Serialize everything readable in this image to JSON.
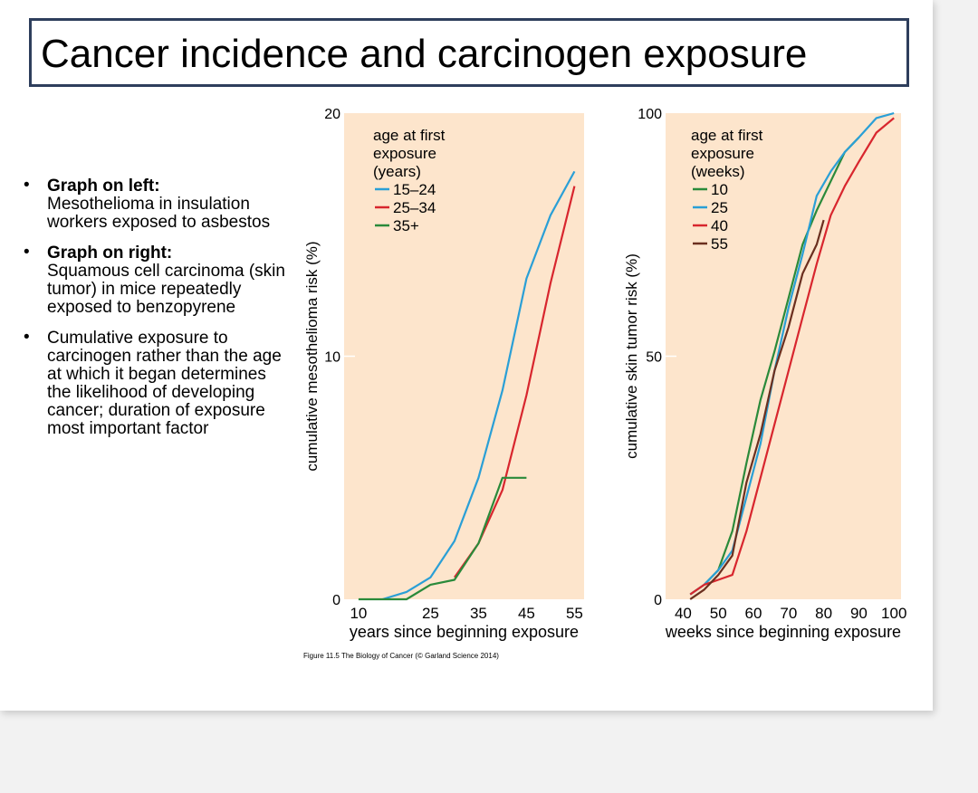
{
  "slide": {
    "title": "Cancer incidence and carcinogen exposure",
    "bullets": [
      {
        "bold": "Graph on left:",
        "text": "Mesothelioma in insulation workers exposed to asbestos"
      },
      {
        "bold": "Graph on right:",
        "text": "Squamous cell carcinoma (skin tumor) in mice repeatedly exposed to benzopyrene"
      },
      {
        "bold": "",
        "text": "Cumulative exposure to carcinogen rather than the age at which it began determines the likelihood of developing cancer; duration of exposure most important factor"
      }
    ],
    "caption": "Figure 11.5 The Biology of Cancer (© Garland Science 2014)"
  },
  "colors": {
    "plot_bg": "#fde5cc",
    "blue": "#2a9fd6",
    "red": "#d8262e",
    "green": "#2a8a3a",
    "brown": "#6b2f1f",
    "title_border": "#2e3e5c"
  },
  "chart_data": [
    {
      "type": "line",
      "xlabel": "years since beginning exposure",
      "ylabel": "cumulative mesothelioma risk (%)",
      "xlim": [
        7,
        57
      ],
      "ylim": [
        0,
        20
      ],
      "xticks": [
        10,
        25,
        35,
        45,
        55
      ],
      "yticks": [
        0,
        10,
        20
      ],
      "grid": false,
      "legend": {
        "title": [
          "age at first",
          "exposure",
          "(years)"
        ],
        "position": "top-left"
      },
      "series": [
        {
          "name": "15–24",
          "color": "#2a9fd6",
          "x": [
            15,
            20,
            25,
            30,
            35,
            40,
            45,
            50,
            55
          ],
          "y": [
            0,
            0.3,
            0.9,
            2.4,
            5.0,
            8.6,
            13.2,
            15.8,
            17.6
          ]
        },
        {
          "name": "25–34",
          "color": "#d8262e",
          "x": [
            30,
            35,
            40,
            45,
            50,
            55
          ],
          "y": [
            0.9,
            2.3,
            4.5,
            8.4,
            13.0,
            17.0
          ]
        },
        {
          "name": "35+",
          "color": "#2a8a3a",
          "x": [
            10,
            15,
            20,
            25,
            30,
            35,
            40,
            45
          ],
          "y": [
            0,
            0,
            0,
            0.6,
            0.8,
            2.3,
            5.0,
            5.0
          ]
        }
      ]
    },
    {
      "type": "line",
      "xlabel": "weeks since beginning exposure",
      "ylabel": "cumulative skin tumor risk (%)",
      "xlim": [
        35,
        102
      ],
      "ylim": [
        0,
        100
      ],
      "xticks": [
        40,
        50,
        60,
        70,
        80,
        90,
        100
      ],
      "yticks": [
        0,
        50,
        100
      ],
      "grid": false,
      "legend": {
        "title": [
          "age at first",
          "exposure",
          "(weeks)"
        ],
        "position": "top-left"
      },
      "series": [
        {
          "name": "10",
          "color": "#2a8a3a",
          "x": [
            42,
            46,
            50,
            54,
            58,
            62,
            66,
            70,
            74,
            78,
            82,
            86,
            90
          ],
          "y": [
            1,
            3,
            6,
            14,
            28,
            41,
            51,
            62,
            73,
            80,
            86,
            92,
            95
          ]
        },
        {
          "name": "25",
          "color": "#2a9fd6",
          "x": [
            42,
            46,
            50,
            54,
            58,
            62,
            66,
            70,
            74,
            78,
            82,
            86,
            90,
            95,
            100
          ],
          "y": [
            1,
            3,
            6,
            10,
            21,
            32,
            47,
            60,
            71,
            83,
            88,
            92,
            95,
            99,
            100
          ]
        },
        {
          "name": "40",
          "color": "#d8262e",
          "x": [
            42,
            46,
            50,
            54,
            58,
            62,
            66,
            70,
            74,
            78,
            82,
            86,
            90,
            95,
            100
          ],
          "y": [
            1,
            3,
            4,
            5,
            14,
            25,
            36,
            47,
            58,
            69,
            79,
            85,
            90,
            96,
            99
          ]
        },
        {
          "name": "55",
          "color": "#6b2f1f",
          "x": [
            42,
            46,
            50,
            54,
            58,
            62,
            66,
            70,
            74,
            78,
            80
          ],
          "y": [
            0,
            2,
            5,
            9,
            24,
            34,
            47,
            56,
            67,
            73,
            78
          ]
        }
      ]
    }
  ]
}
